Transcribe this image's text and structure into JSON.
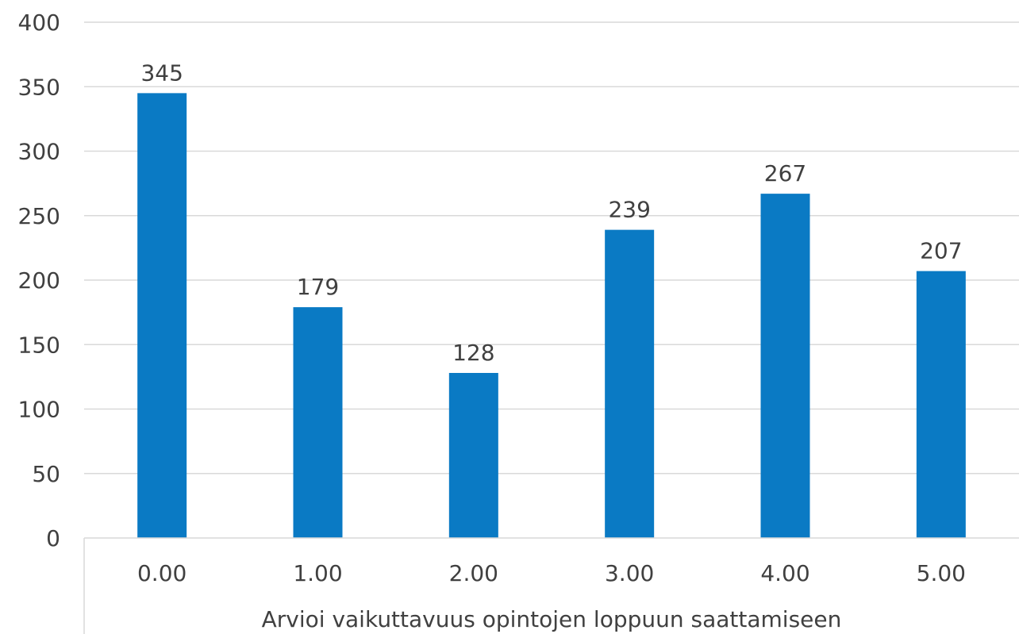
{
  "chart_data": {
    "type": "bar",
    "categories": [
      "0.00",
      "1.00",
      "2.00",
      "3.00",
      "4.00",
      "5.00"
    ],
    "values": [
      345,
      179,
      128,
      239,
      267,
      207
    ],
    "data_labels": [
      "345",
      "179",
      "128",
      "239",
      "267",
      "207"
    ],
    "title": "",
    "xlabel": "Arvioi vaikuttavuus opintojen loppuun saattamiseen",
    "ylabel": "",
    "ylim": [
      0,
      400
    ],
    "yticks": [
      "0",
      "50",
      "100",
      "150",
      "200",
      "250",
      "300",
      "350",
      "400"
    ],
    "grid": true,
    "legend": "none",
    "colors": {
      "bar": "#0a7ac4",
      "grid": "#d9d9d9",
      "text": "#404040"
    }
  }
}
